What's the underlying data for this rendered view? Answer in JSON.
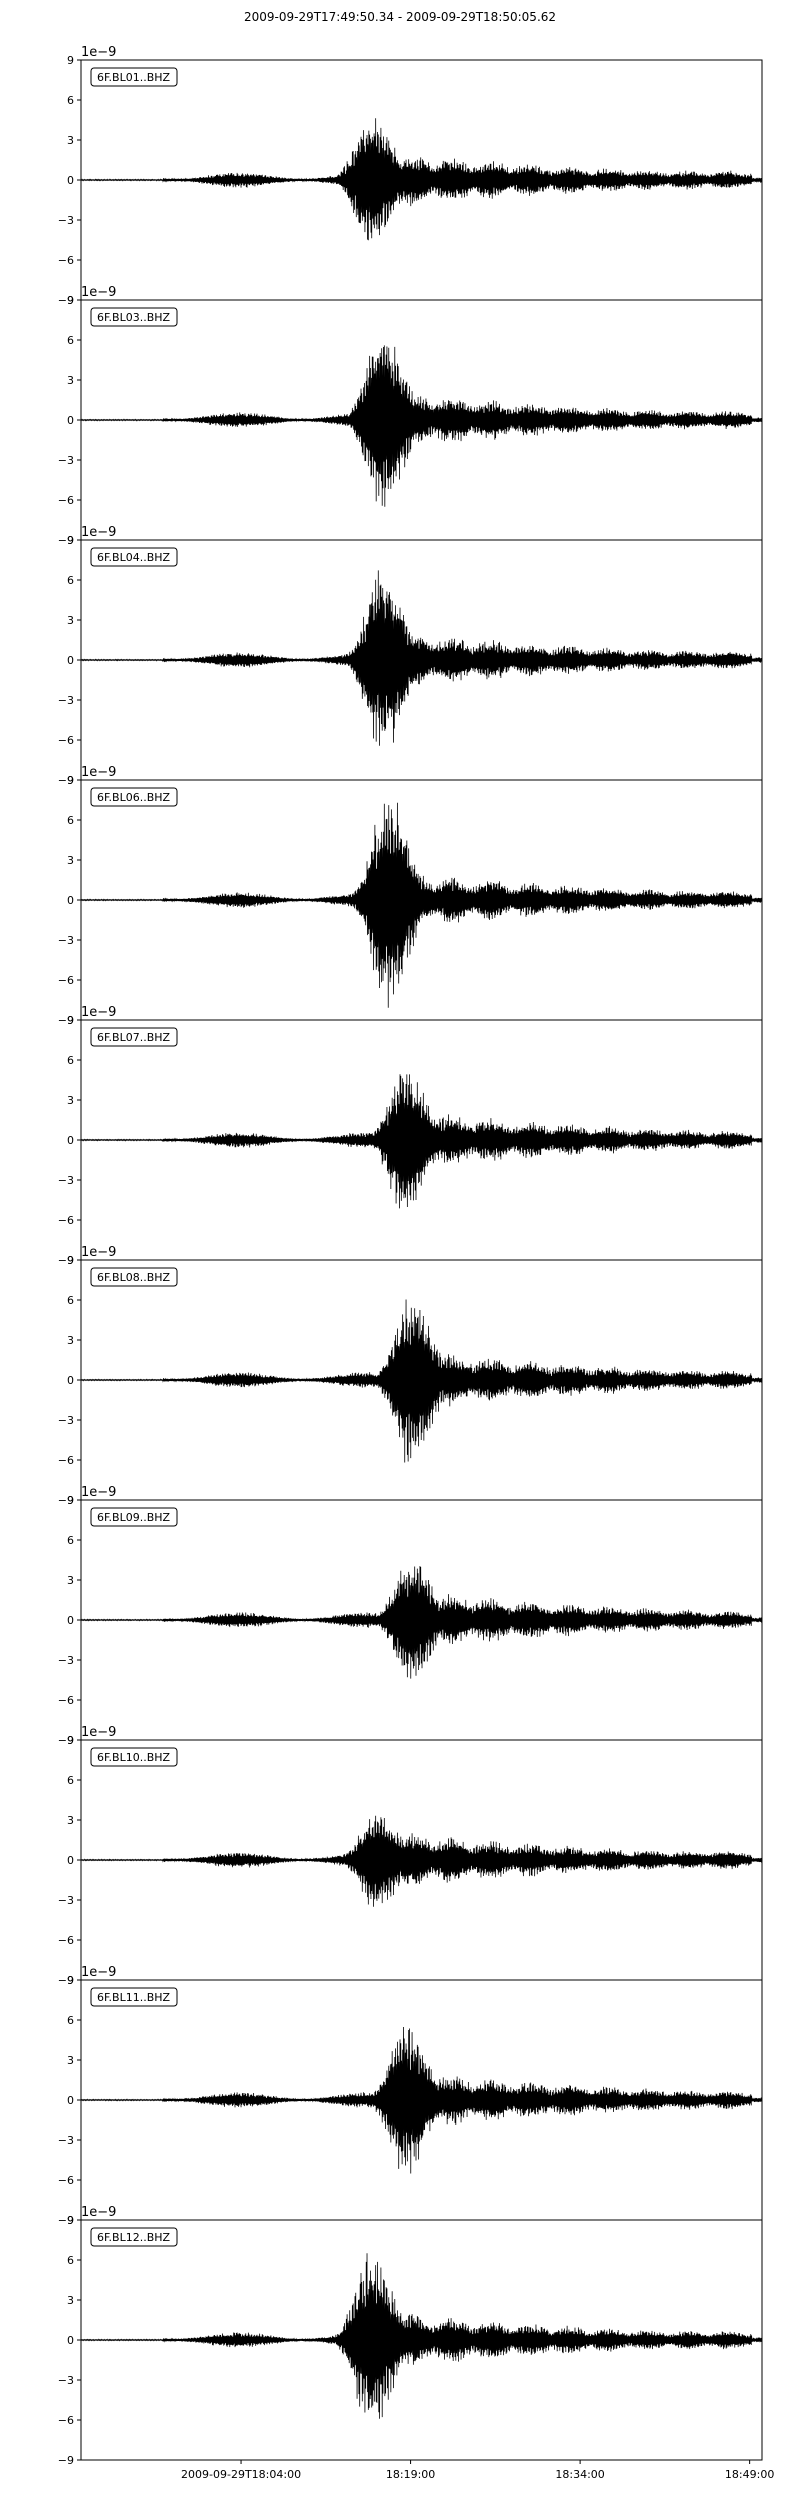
{
  "figure": {
    "title": "2009-09-29T17:49:50.34  -  2009-09-29T18:50:05.62"
  },
  "chart_data": {
    "type": "line",
    "panel_count": 10,
    "y_scale_note": "1e−9",
    "ylim": [
      -9,
      9
    ],
    "y_ticks": [
      -9,
      -6,
      -3,
      0,
      3,
      6,
      9
    ],
    "y_tick_labels": [
      "−9",
      "−6",
      "−3",
      "0",
      "3",
      "6",
      "9"
    ],
    "x_range": [
      "2009-09-29T17:49:50.34",
      "2009-09-29T18:50:05.62"
    ],
    "x_ticks": [
      {
        "time": "2009-09-29T18:04:00",
        "label": "2009-09-29T18:04:00"
      },
      {
        "time": "2009-09-29T18:19:00",
        "label": "18:19:00"
      },
      {
        "time": "2009-09-29T18:34:00",
        "label": "18:34:00"
      },
      {
        "time": "2009-09-29T18:49:00",
        "label": "18:49:00"
      }
    ],
    "series": [
      {
        "name": "6F.BL01..BHZ",
        "peak_time": "2009-09-29T18:15:30",
        "peak_amplitude": 5.3
      },
      {
        "name": "6F.BL03..BHZ",
        "peak_time": "2009-09-29T18:16:30",
        "peak_amplitude": 7.0
      },
      {
        "name": "6F.BL04..BHZ",
        "peak_time": "2009-09-29T18:16:30",
        "peak_amplitude": 7.3
      },
      {
        "name": "6F.BL06..BHZ",
        "peak_time": "2009-09-29T18:17:00",
        "peak_amplitude": 8.5
      },
      {
        "name": "6F.BL07..BHZ",
        "peak_time": "2009-09-29T18:18:30",
        "peak_amplitude": 5.8
      },
      {
        "name": "6F.BL08..BHZ",
        "peak_time": "2009-09-29T18:19:00",
        "peak_amplitude": 6.8
      },
      {
        "name": "6F.BL09..BHZ",
        "peak_time": "2009-09-29T18:19:00",
        "peak_amplitude": 4.8
      },
      {
        "name": "6F.BL10..BHZ",
        "peak_time": "2009-09-29T18:16:00",
        "peak_amplitude": 4.0
      },
      {
        "name": "6F.BL11..BHZ",
        "peak_time": "2009-09-29T18:18:30",
        "peak_amplitude": 6.0
      },
      {
        "name": "6F.BL12..BHZ",
        "peak_time": "2009-09-29T18:15:30",
        "peak_amplitude": 7.0
      }
    ]
  }
}
